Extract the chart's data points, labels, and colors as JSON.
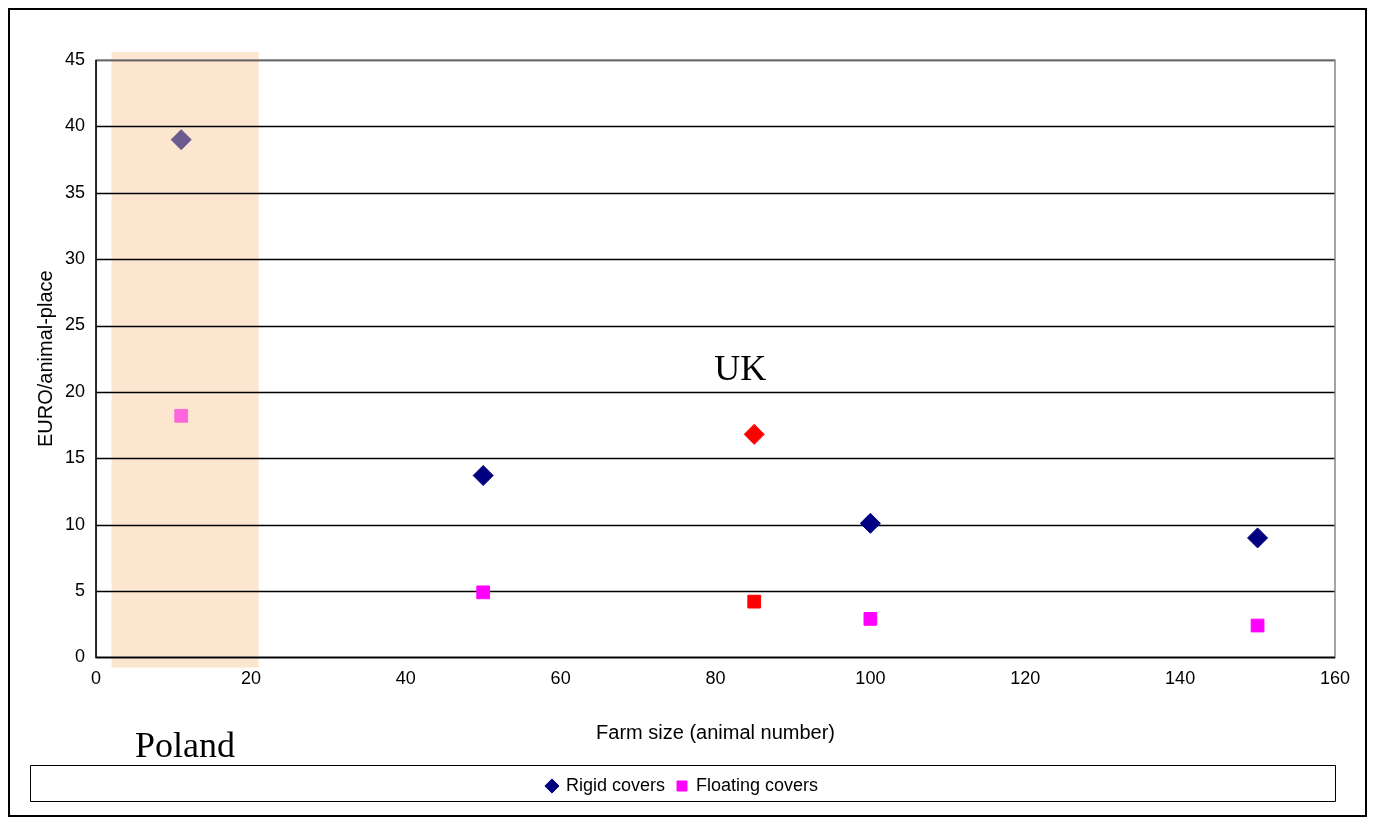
{
  "chart_data": {
    "type": "scatter",
    "xlabel": "Farm size (animal number)",
    "ylabel": "EURO/animal-place",
    "xlim": [
      0,
      160
    ],
    "xticks": [
      0,
      20,
      40,
      60,
      80,
      100,
      120,
      140,
      160
    ],
    "ylim": [
      0,
      45
    ],
    "yticks": [
      0,
      5,
      10,
      15,
      20,
      25,
      30,
      35,
      40,
      45
    ],
    "grid": "y",
    "legend": "bottom",
    "series": [
      {
        "name": "Rigid covers",
        "color": "#000080",
        "marker": "diamond",
        "x": [
          11,
          50,
          85,
          100,
          150
        ],
        "values": [
          39,
          13.7,
          16.8,
          10.1,
          9
        ],
        "colors": [
          "#6b5b8e",
          "#000080",
          "#ff0000",
          "#000080",
          "#000080"
        ]
      },
      {
        "name": "Floating covers",
        "color": "#ff00ff",
        "marker": "square",
        "x": [
          11,
          50,
          85,
          100,
          150
        ],
        "values": [
          18.2,
          4.9,
          4.2,
          2.9,
          2.4
        ],
        "colors": [
          "#ff66dd",
          "#ff00ff",
          "#ff0000",
          "#ff00ff",
          "#ff00ff"
        ]
      }
    ],
    "bands": [
      {
        "axis": "x",
        "from": 2,
        "to": 21,
        "label": "Poland",
        "color": "#fde6cf"
      }
    ],
    "annotations": [
      "UK"
    ]
  }
}
